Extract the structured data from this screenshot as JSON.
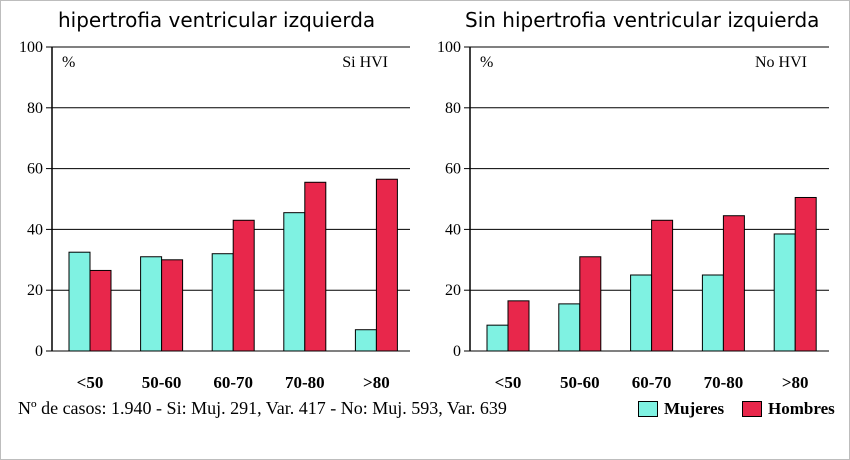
{
  "colors": {
    "mujeres": "#7ff2e2",
    "hombres": "#e8274b",
    "grid": "#000000"
  },
  "titles": [
    "hipertrofia ventricular izquierda",
    "Sin hipertrofia ventricular izquierda"
  ],
  "footer": "Nº de casos: 1.940 - Si: Muj. 291, Var. 417 - No: Muj. 593, Var. 639",
  "legend": {
    "mujeres": "Mujeres",
    "hombres": "Hombres"
  },
  "chart_data": [
    {
      "type": "bar",
      "title": "hipertrofia ventricular izquierda",
      "tag": "Si HVI",
      "ylabel": "%",
      "ylim": [
        0,
        100
      ],
      "yticks": [
        0,
        20,
        40,
        60,
        80,
        100
      ],
      "categories": [
        "<50",
        "50-60",
        "60-70",
        "70-80",
        ">80"
      ],
      "series": [
        {
          "name": "Mujeres",
          "values": [
            32.5,
            31,
            32,
            45.5,
            7
          ]
        },
        {
          "name": "Hombres",
          "values": [
            26.5,
            30,
            43,
            55.5,
            56.5
          ]
        }
      ],
      "grid": true
    },
    {
      "type": "bar",
      "title": "Sin hipertrofia ventricular izquierda",
      "tag": "No HVI",
      "ylabel": "%",
      "ylim": [
        0,
        100
      ],
      "yticks": [
        0,
        20,
        40,
        60,
        80,
        100
      ],
      "categories": [
        "<50",
        "50-60",
        "60-70",
        "70-80",
        ">80"
      ],
      "series": [
        {
          "name": "Mujeres",
          "values": [
            8.5,
            15.5,
            25,
            25,
            38.5
          ]
        },
        {
          "name": "Hombres",
          "values": [
            16.5,
            31,
            43,
            44.5,
            50.5
          ]
        }
      ],
      "grid": true
    }
  ]
}
